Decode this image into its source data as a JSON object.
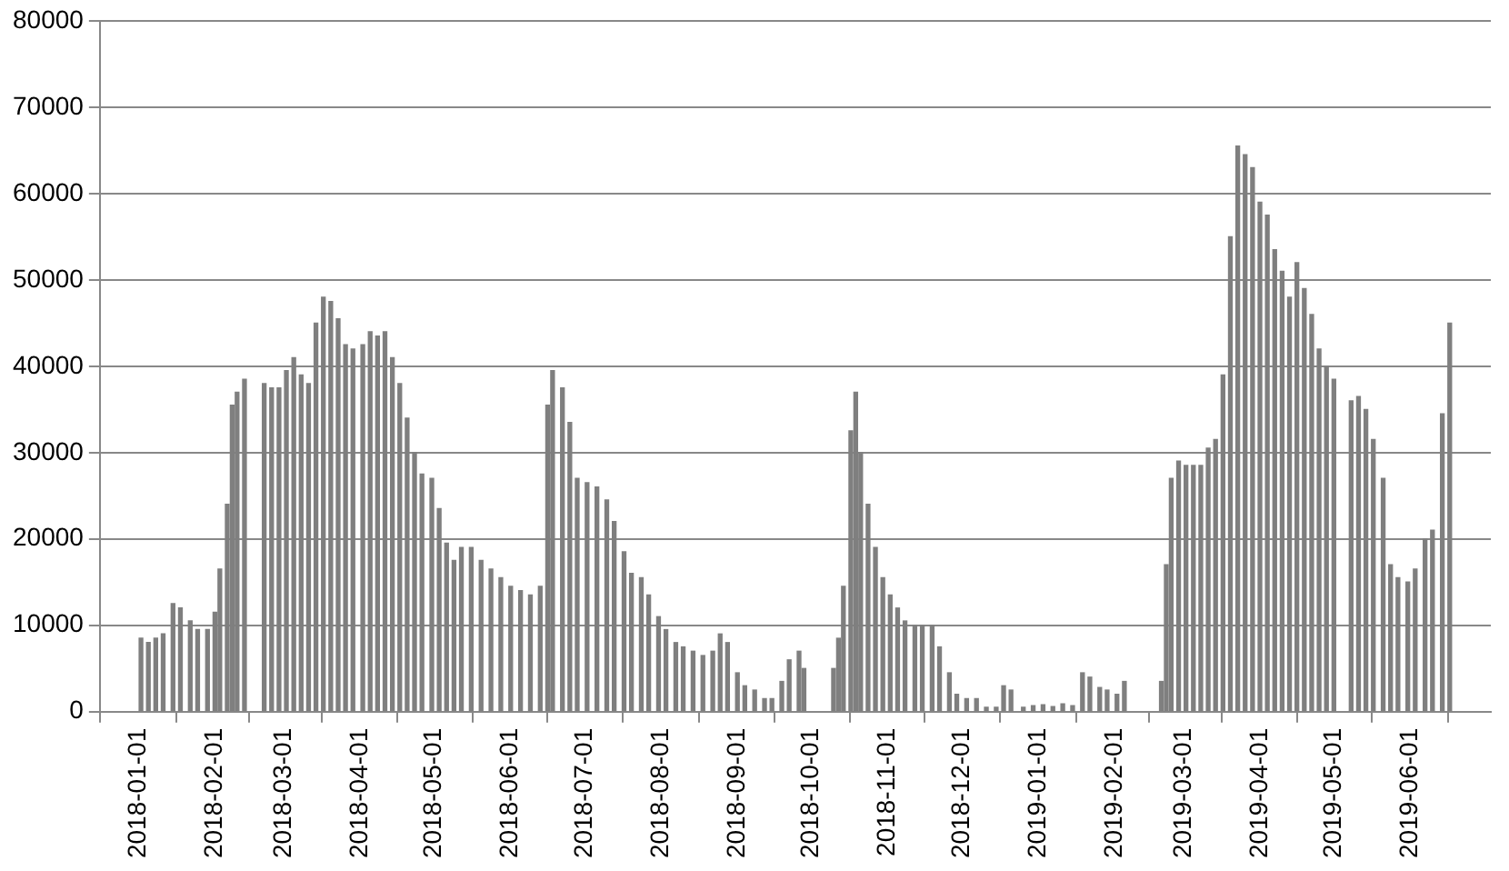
{
  "chart_data": {
    "type": "bar",
    "x": [
      "2018-01-02",
      "2018-01-05",
      "2018-01-08",
      "2018-01-11",
      "2018-01-15",
      "2018-01-18",
      "2018-01-22",
      "2018-01-25",
      "2018-01-29",
      "2018-02-01",
      "2018-02-03",
      "2018-02-06",
      "2018-02-08",
      "2018-02-10",
      "2018-02-13",
      "2018-02-21",
      "2018-02-24",
      "2018-02-27",
      "2018-03-02",
      "2018-03-05",
      "2018-03-08",
      "2018-03-11",
      "2018-03-14",
      "2018-03-17",
      "2018-03-20",
      "2018-03-23",
      "2018-03-26",
      "2018-03-29",
      "2018-04-02",
      "2018-04-05",
      "2018-04-08",
      "2018-04-11",
      "2018-04-14",
      "2018-04-17",
      "2018-04-20",
      "2018-04-23",
      "2018-04-26",
      "2018-04-30",
      "2018-05-03",
      "2018-05-06",
      "2018-05-09",
      "2018-05-12",
      "2018-05-16",
      "2018-05-20",
      "2018-05-24",
      "2018-05-28",
      "2018-06-01",
      "2018-06-05",
      "2018-06-09",
      "2018-06-13",
      "2018-06-16",
      "2018-06-18",
      "2018-06-22",
      "2018-06-25",
      "2018-06-28",
      "2018-07-02",
      "2018-07-06",
      "2018-07-10",
      "2018-07-13",
      "2018-07-17",
      "2018-07-20",
      "2018-07-24",
      "2018-07-27",
      "2018-07-31",
      "2018-08-03",
      "2018-08-07",
      "2018-08-10",
      "2018-08-14",
      "2018-08-18",
      "2018-08-22",
      "2018-08-25",
      "2018-08-28",
      "2018-09-01",
      "2018-09-04",
      "2018-09-08",
      "2018-09-12",
      "2018-09-15",
      "2018-09-19",
      "2018-09-22",
      "2018-09-26",
      "2018-09-28",
      "2018-10-10",
      "2018-10-12",
      "2018-10-14",
      "2018-10-17",
      "2018-10-19",
      "2018-10-21",
      "2018-10-24",
      "2018-10-27",
      "2018-10-30",
      "2018-11-02",
      "2018-11-05",
      "2018-11-08",
      "2018-11-12",
      "2018-11-15",
      "2018-11-19",
      "2018-11-22",
      "2018-11-26",
      "2018-11-29",
      "2018-12-03",
      "2018-12-07",
      "2018-12-11",
      "2018-12-15",
      "2018-12-18",
      "2018-12-21",
      "2018-12-26",
      "2018-12-30",
      "2019-01-03",
      "2019-01-07",
      "2019-01-11",
      "2019-01-15",
      "2019-01-19",
      "2019-01-22",
      "2019-01-26",
      "2019-01-29",
      "2019-02-02",
      "2019-02-05",
      "2019-02-20",
      "2019-02-22",
      "2019-02-24",
      "2019-02-27",
      "2019-03-02",
      "2019-03-05",
      "2019-03-08",
      "2019-03-11",
      "2019-03-14",
      "2019-03-17",
      "2019-03-20",
      "2019-03-23",
      "2019-03-26",
      "2019-03-29",
      "2019-04-01",
      "2019-04-04",
      "2019-04-07",
      "2019-04-10",
      "2019-04-13",
      "2019-04-16",
      "2019-04-19",
      "2019-04-22",
      "2019-04-25",
      "2019-04-28",
      "2019-05-01",
      "2019-05-08",
      "2019-05-11",
      "2019-05-14",
      "2019-05-17",
      "2019-05-21",
      "2019-05-24",
      "2019-05-27",
      "2019-05-31",
      "2019-06-03",
      "2019-06-07",
      "2019-06-10",
      "2019-06-14",
      "2019-06-17"
    ],
    "series": [
      {
        "color": "#7f7f7f",
        "values": [
          8500,
          8000,
          8500,
          9000,
          12500,
          12000,
          10500,
          9500,
          9500,
          11500,
          16500,
          24000,
          35500,
          37000,
          38500,
          38000,
          37500,
          37500,
          39500,
          41000,
          39000,
          38000,
          45000,
          48000,
          47500,
          45500,
          42500,
          42000,
          42500,
          44000,
          43500,
          44000,
          41000,
          38000,
          34000,
          30000,
          27500,
          27000,
          23500,
          19500,
          17500,
          19000,
          19000,
          17500,
          16500,
          15500,
          14500,
          14000,
          13500,
          14500,
          35500,
          39500,
          37500,
          33500,
          27000,
          26500,
          26000,
          24500,
          22000,
          18500,
          16000,
          15500,
          13500,
          11000,
          9500,
          8000,
          7500,
          7000,
          6500,
          7000,
          9000,
          8000,
          4500,
          3000,
          2500,
          1500,
          1500,
          3500,
          6000,
          7000,
          5000,
          5000,
          8500,
          14500,
          32500,
          37000,
          30000,
          24000,
          19000,
          15500,
          13500,
          12000,
          10500,
          10000,
          10000,
          10000,
          7500,
          4500,
          2000,
          1500,
          1500,
          500,
          500,
          3000,
          2500,
          500,
          700,
          800,
          600,
          900,
          700,
          4500,
          4000,
          2800,
          2500,
          2000,
          3500,
          3500,
          17000,
          27000,
          29000,
          28500,
          28500,
          28500,
          30500,
          31500,
          39000,
          55000,
          65500,
          64500,
          63000,
          59000,
          57500,
          53500,
          51000,
          48000,
          52000,
          49000,
          46000,
          42000,
          40000,
          38500,
          36000,
          36500,
          35000,
          31500,
          27000,
          17000,
          15500,
          15000,
          16500,
          20000,
          21000,
          34500,
          45000
        ]
      }
    ],
    "xlim": [
      "2018-01-01",
      "2019-06-18"
    ],
    "xticks": [
      "2018-01-01",
      "2018-02-01",
      "2018-03-01",
      "2018-04-01",
      "2018-05-01",
      "2018-06-01",
      "2018-07-01",
      "2018-08-01",
      "2018-09-01",
      "2018-10-01",
      "2018-11-01",
      "2018-12-01",
      "2019-01-01",
      "2019-02-01",
      "2019-03-01",
      "2019-04-01",
      "2019-05-01",
      "2019-06-01"
    ],
    "ylim": [
      0,
      80000
    ],
    "yticks": [
      0,
      10000,
      20000,
      30000,
      40000,
      50000,
      60000,
      70000,
      80000
    ],
    "grid": "y"
  }
}
